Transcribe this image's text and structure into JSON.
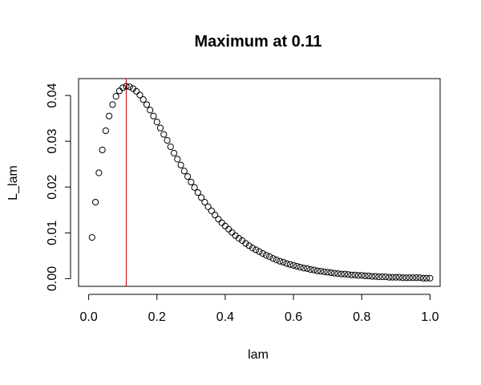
{
  "chart_data": {
    "type": "scatter",
    "title": "Maximum at 0.11",
    "xlabel": "lam",
    "ylabel": "L_lam",
    "xlim": [
      -0.0296,
      1.0296
    ],
    "ylim": [
      -0.00168,
      0.04368
    ],
    "x_ticks": [
      0.0,
      0.2,
      0.4,
      0.6,
      0.8,
      1.0
    ],
    "x_tick_labels": [
      "0.0",
      "0.2",
      "0.4",
      "0.6",
      "0.8",
      "1.0"
    ],
    "y_ticks": [
      0.0,
      0.01,
      0.02,
      0.03,
      0.04
    ],
    "y_tick_labels": [
      "0.00",
      "0.01",
      "0.02",
      "0.03",
      "0.04"
    ],
    "grid": false,
    "marker": "open-circle",
    "vline": {
      "x": 0.11,
      "color": "#cc0000"
    },
    "points": [
      [
        0.01,
        0.009
      ],
      [
        0.02,
        0.0167
      ],
      [
        0.03,
        0.0231
      ],
      [
        0.04,
        0.0281
      ],
      [
        0.05,
        0.0323
      ],
      [
        0.06,
        0.0355
      ],
      [
        0.07,
        0.038
      ],
      [
        0.08,
        0.0398
      ],
      [
        0.09,
        0.041
      ],
      [
        0.1,
        0.0417
      ],
      [
        0.11,
        0.042
      ],
      [
        0.12,
        0.0419
      ],
      [
        0.13,
        0.0415
      ],
      [
        0.14,
        0.0409
      ],
      [
        0.15,
        0.0401
      ],
      [
        0.16,
        0.0391
      ],
      [
        0.17,
        0.038
      ],
      [
        0.18,
        0.0368
      ],
      [
        0.19,
        0.0355
      ],
      [
        0.2,
        0.0342
      ],
      [
        0.21,
        0.0329
      ],
      [
        0.22,
        0.0315
      ],
      [
        0.23,
        0.0302
      ],
      [
        0.24,
        0.0288
      ],
      [
        0.25,
        0.0274
      ],
      [
        0.26,
        0.0261
      ],
      [
        0.27,
        0.0248
      ],
      [
        0.28,
        0.0235
      ],
      [
        0.29,
        0.0223
      ],
      [
        0.3,
        0.0211
      ],
      [
        0.31,
        0.0199
      ],
      [
        0.32,
        0.0188
      ],
      [
        0.33,
        0.0177
      ],
      [
        0.34,
        0.0167
      ],
      [
        0.35,
        0.0157
      ],
      [
        0.36,
        0.0148
      ],
      [
        0.37,
        0.0139
      ],
      [
        0.38,
        0.013
      ],
      [
        0.39,
        0.0122
      ],
      [
        0.4,
        0.0115
      ],
      [
        0.41,
        0.0108
      ],
      [
        0.42,
        0.0101
      ],
      [
        0.43,
        0.0094
      ],
      [
        0.44,
        0.0088
      ],
      [
        0.45,
        0.0083
      ],
      [
        0.46,
        0.0077
      ],
      [
        0.47,
        0.0072
      ],
      [
        0.48,
        0.0067
      ],
      [
        0.49,
        0.0063
      ],
      [
        0.5,
        0.0059
      ],
      [
        0.51,
        0.0055
      ],
      [
        0.52,
        0.0051
      ],
      [
        0.53,
        0.0048
      ],
      [
        0.54,
        0.0044
      ],
      [
        0.55,
        0.0041
      ],
      [
        0.56,
        0.0038
      ],
      [
        0.57,
        0.0036
      ],
      [
        0.58,
        0.0033
      ],
      [
        0.59,
        0.0031
      ],
      [
        0.6,
        0.0029
      ],
      [
        0.61,
        0.0027
      ],
      [
        0.62,
        0.0025
      ],
      [
        0.63,
        0.0023
      ],
      [
        0.64,
        0.0022
      ],
      [
        0.65,
        0.002
      ],
      [
        0.66,
        0.0019
      ],
      [
        0.67,
        0.0017
      ],
      [
        0.68,
        0.0016
      ],
      [
        0.69,
        0.0015
      ],
      [
        0.7,
        0.0014
      ],
      [
        0.71,
        0.0013
      ],
      [
        0.72,
        0.0012
      ],
      [
        0.73,
        0.0011
      ],
      [
        0.74,
        0.001
      ],
      [
        0.75,
        0.001
      ],
      [
        0.76,
        0.0009
      ],
      [
        0.77,
        0.0008
      ],
      [
        0.78,
        0.0008
      ],
      [
        0.79,
        0.0007
      ],
      [
        0.8,
        0.0007
      ],
      [
        0.81,
        0.0006
      ],
      [
        0.82,
        0.0006
      ],
      [
        0.83,
        0.0005
      ],
      [
        0.84,
        0.0005
      ],
      [
        0.85,
        0.0004
      ],
      [
        0.86,
        0.0004
      ],
      [
        0.87,
        0.0004
      ],
      [
        0.88,
        0.0003
      ],
      [
        0.89,
        0.0003
      ],
      [
        0.9,
        0.0003
      ],
      [
        0.91,
        0.0003
      ],
      [
        0.92,
        0.0002
      ],
      [
        0.93,
        0.0002
      ],
      [
        0.94,
        0.0002
      ],
      [
        0.95,
        0.0002
      ],
      [
        0.96,
        0.0002
      ],
      [
        0.97,
        0.0002
      ],
      [
        0.98,
        0.0001
      ],
      [
        0.99,
        0.0001
      ],
      [
        1.0,
        0.0001
      ]
    ]
  }
}
